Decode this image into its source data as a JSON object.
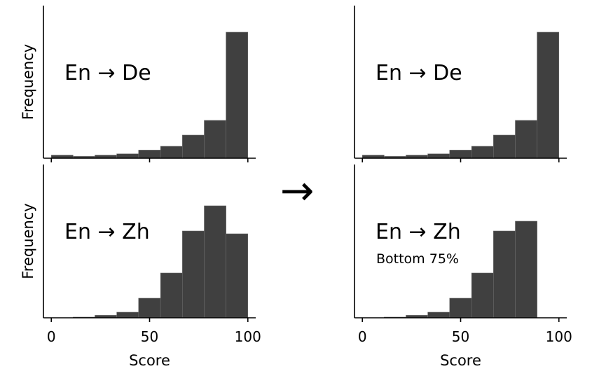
{
  "figure": {
    "arrow": "→",
    "bar_color": "#404040"
  },
  "chart_data": [
    {
      "id": "left-top",
      "type": "bar",
      "panel_label": "En → De",
      "subtitle": "",
      "ylabel": "Frequency",
      "xlabel": "",
      "bin_edges": [
        0,
        11.1,
        22.2,
        33.3,
        44.4,
        55.6,
        66.7,
        77.8,
        88.9,
        100
      ],
      "values": [
        0.022,
        0.013,
        0.022,
        0.031,
        0.058,
        0.085,
        0.165,
        0.27,
        0.9
      ],
      "xlim": [
        -4,
        104
      ],
      "ylim": [
        0,
        1
      ],
      "xticks": [
        0,
        50,
        100
      ],
      "show_tick_labels": false
    },
    {
      "id": "right-top",
      "type": "bar",
      "panel_label": "En → De",
      "subtitle": "",
      "ylabel": "",
      "xlabel": "",
      "bin_edges": [
        0,
        11.1,
        22.2,
        33.3,
        44.4,
        55.6,
        66.7,
        77.8,
        88.9,
        100
      ],
      "values": [
        0.022,
        0.013,
        0.022,
        0.031,
        0.058,
        0.085,
        0.165,
        0.27,
        0.9
      ],
      "xlim": [
        -4,
        104
      ],
      "ylim": [
        0,
        1
      ],
      "xticks": [
        0,
        50,
        100
      ],
      "show_tick_labels": false
    },
    {
      "id": "left-bottom",
      "type": "bar",
      "panel_label": "En → Zh",
      "subtitle": "",
      "ylabel": "Frequency",
      "xlabel": "Score",
      "bin_edges": [
        0,
        11.1,
        22.2,
        33.3,
        44.4,
        55.6,
        66.7,
        77.8,
        88.9,
        100
      ],
      "values": [
        0.0,
        0.005,
        0.018,
        0.04,
        0.14,
        0.32,
        0.62,
        0.8,
        0.6
      ],
      "xlim": [
        -4,
        104
      ],
      "ylim": [
        0,
        1
      ],
      "xticks": [
        0,
        50,
        100
      ],
      "xtick_labels": [
        "0",
        "50",
        "100"
      ],
      "show_tick_labels": true
    },
    {
      "id": "right-bottom",
      "type": "bar",
      "panel_label": "En → Zh",
      "subtitle": "Bottom 75%",
      "ylabel": "",
      "xlabel": "Score",
      "bin_edges": [
        0,
        11.1,
        22.2,
        33.3,
        44.4,
        55.6,
        66.7,
        77.8,
        88.9
      ],
      "values": [
        0.0,
        0.005,
        0.018,
        0.04,
        0.14,
        0.32,
        0.62,
        0.69
      ],
      "xlim": [
        -4,
        104
      ],
      "ylim": [
        0,
        1
      ],
      "xticks": [
        0,
        50,
        100
      ],
      "xtick_labels": [
        "0",
        "50",
        "100"
      ],
      "show_tick_labels": true
    }
  ]
}
